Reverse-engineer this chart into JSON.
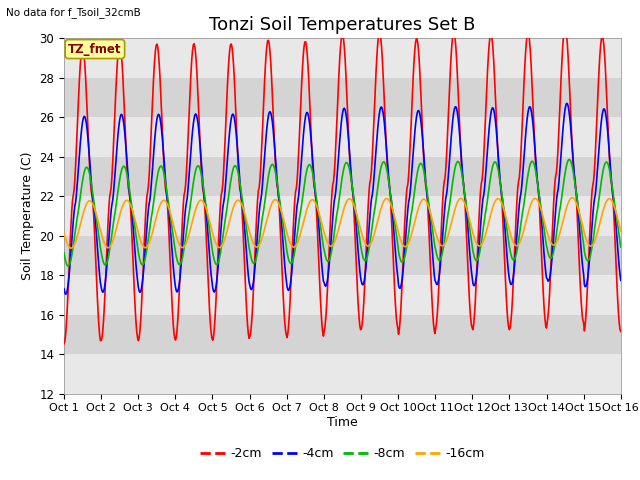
{
  "title": "Tonzi Soil Temperatures Set B",
  "ylabel": "Soil Temperature (C)",
  "xlabel": "Time",
  "no_data_text": "No data for f_Tsoil_32cmB",
  "tz_label": "TZ_fmet",
  "ylim": [
    12,
    30
  ],
  "yticks": [
    12,
    14,
    16,
    18,
    20,
    22,
    24,
    26,
    28,
    30
  ],
  "n_days": 15,
  "pts_per_day": 48,
  "colors": {
    "-2cm": "#ff0000",
    "-4cm": "#0000ff",
    "-8cm": "#00bb00",
    "-16cm": "#ffa500"
  },
  "line_width": 1.2,
  "band_light": "#e8e8e8",
  "band_dark": "#d4d4d4",
  "title_fontsize": 13,
  "label_fontsize": 9,
  "tick_fontsize": 8.5
}
